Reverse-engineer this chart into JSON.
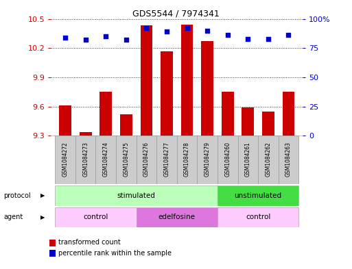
{
  "title": "GDS5544 / 7974341",
  "samples": [
    "GSM1084272",
    "GSM1084273",
    "GSM1084274",
    "GSM1084275",
    "GSM1084276",
    "GSM1084277",
    "GSM1084278",
    "GSM1084279",
    "GSM1084260",
    "GSM1084261",
    "GSM1084262",
    "GSM1084263"
  ],
  "bar_values": [
    9.61,
    9.34,
    9.75,
    9.52,
    10.43,
    10.17,
    10.44,
    10.27,
    9.75,
    9.59,
    9.55,
    9.75
  ],
  "percentile_values": [
    84,
    82,
    85,
    82,
    92,
    89,
    92,
    90,
    86,
    83,
    83,
    86
  ],
  "bar_color": "#cc0000",
  "dot_color": "#0000cc",
  "ylim_left": [
    9.3,
    10.5
  ],
  "ylim_right": [
    0,
    100
  ],
  "yticks_left": [
    9.3,
    9.6,
    9.9,
    10.2,
    10.5
  ],
  "yticks_right": [
    0,
    25,
    50,
    75,
    100
  ],
  "ytick_labels_right": [
    "0",
    "25",
    "50",
    "75",
    "100%"
  ],
  "protocol_groups": [
    {
      "label": "stimulated",
      "start": 0,
      "end": 7,
      "color": "#bbffbb"
    },
    {
      "label": "unstimulated",
      "start": 8,
      "end": 11,
      "color": "#44dd44"
    }
  ],
  "agent_groups": [
    {
      "label": "control",
      "start": 0,
      "end": 3,
      "color": "#ffccff"
    },
    {
      "label": "edelfosine",
      "start": 4,
      "end": 7,
      "color": "#dd77dd"
    },
    {
      "label": "control",
      "start": 8,
      "end": 11,
      "color": "#ffccff"
    }
  ],
  "legend_bar_label": "transformed count",
  "legend_dot_label": "percentile rank within the sample",
  "bg_color": "#ffffff",
  "grid_color": "#000000",
  "bar_width": 0.6,
  "sample_box_color": "#cccccc",
  "sample_box_edge": "#999999"
}
